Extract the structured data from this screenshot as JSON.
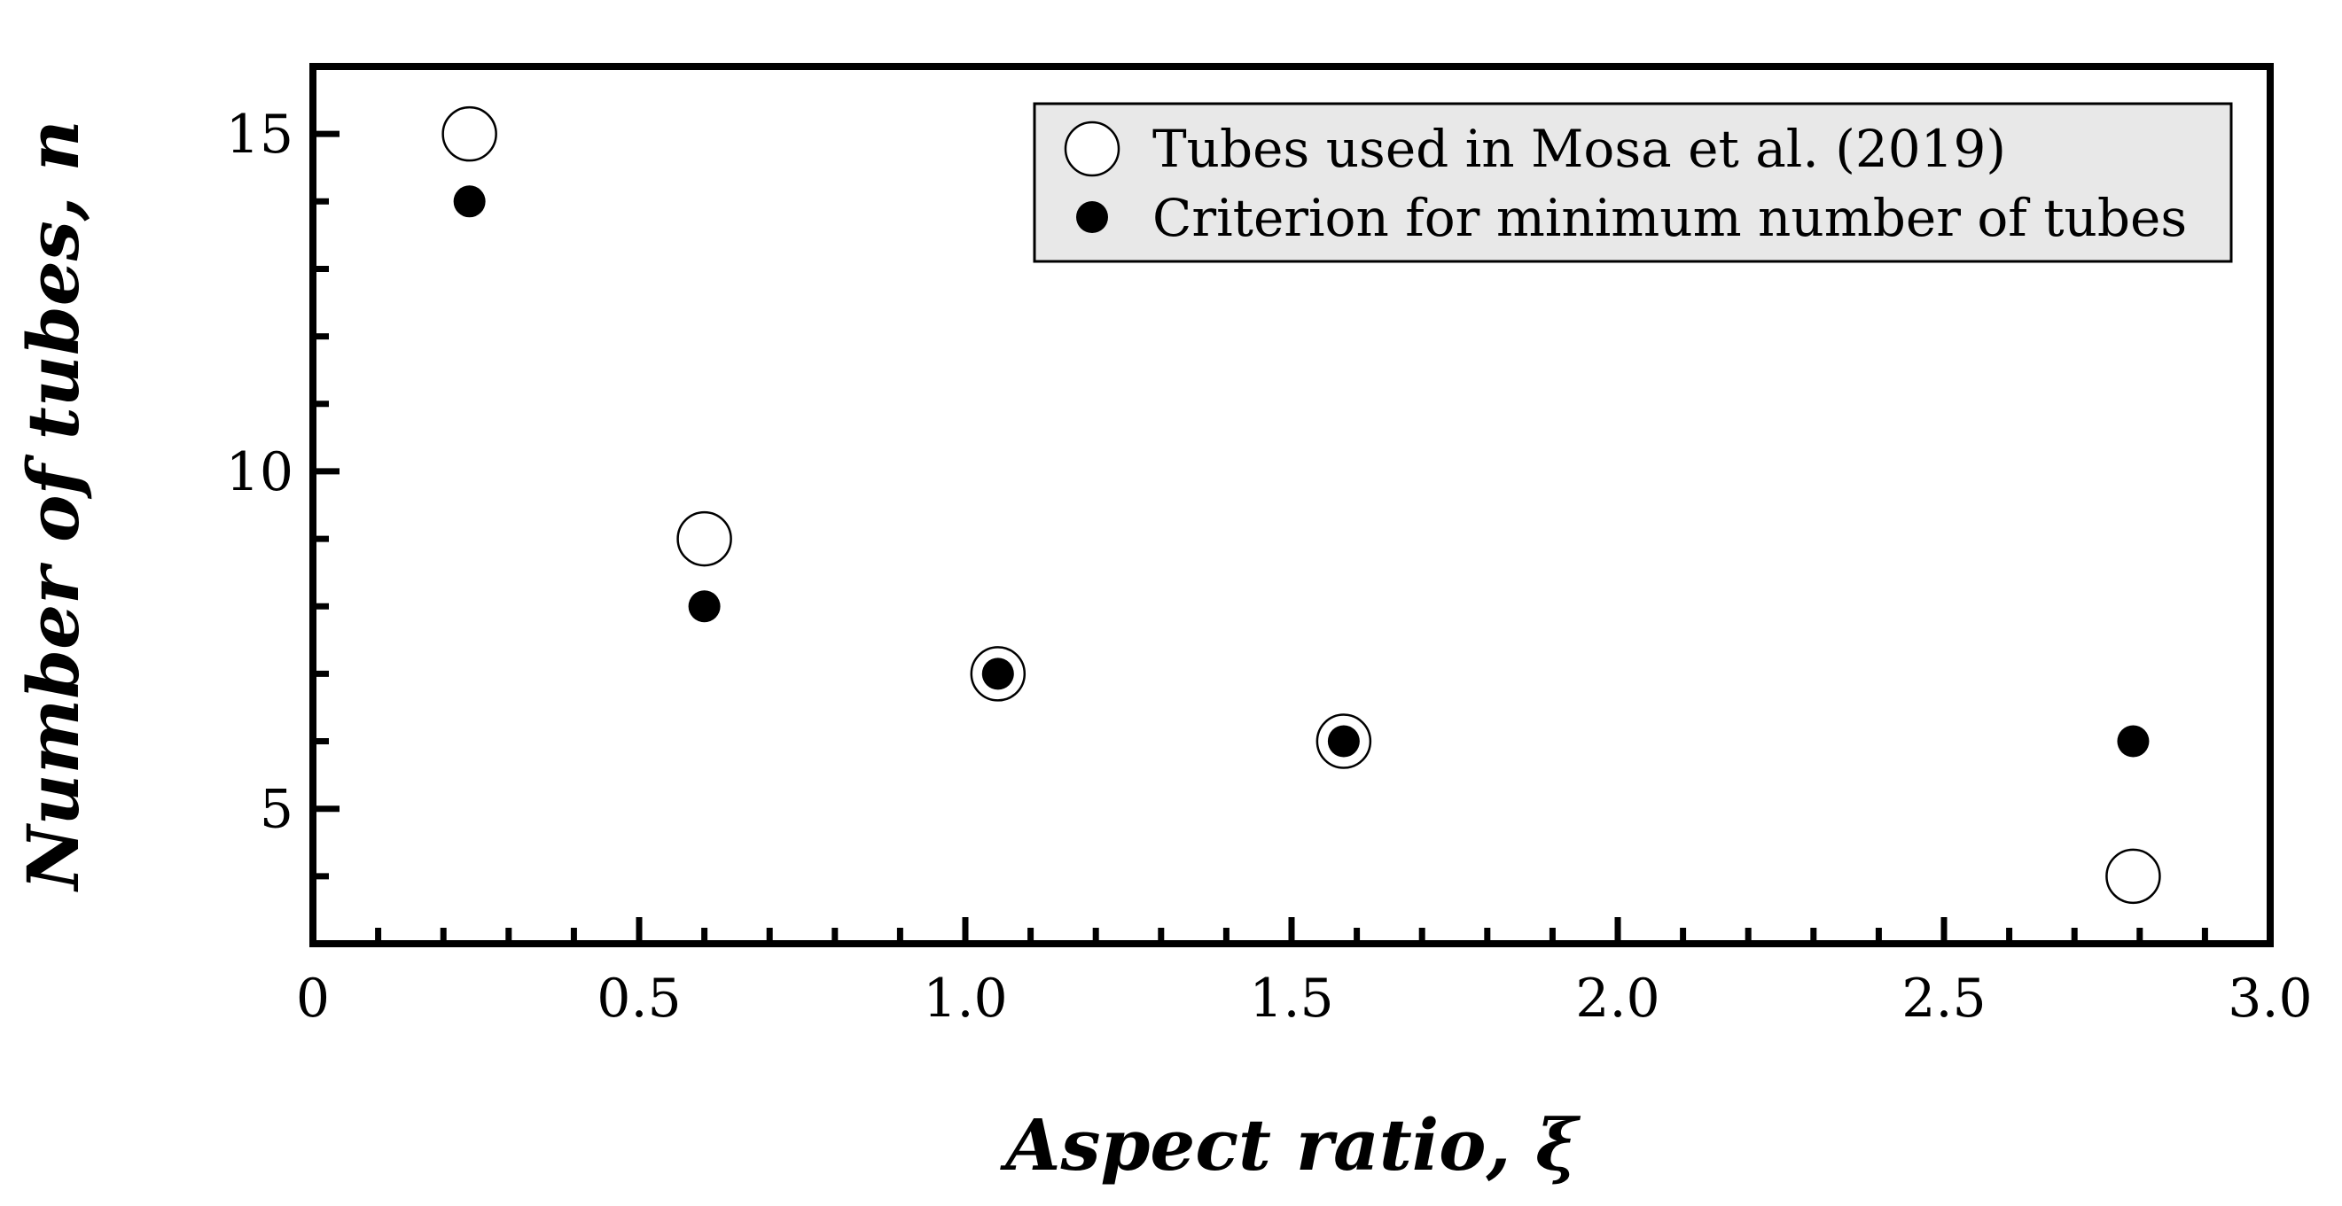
{
  "chart_data": {
    "type": "scatter",
    "xlabel": "Aspect ratio, ξ",
    "ylabel": "Number of tubes, n",
    "xlim": [
      0,
      3.0
    ],
    "ylim": [
      3,
      16
    ],
    "x_ticks": [
      0,
      0.5,
      1.0,
      1.5,
      2.0,
      2.5,
      3.0
    ],
    "x_tick_labels": [
      "0",
      "0.5",
      "1.0",
      "1.5",
      "2.0",
      "2.5",
      "3.0"
    ],
    "x_minor_step": 0.1,
    "y_ticks": [
      5,
      10,
      15
    ],
    "y_tick_labels": [
      "5",
      "10",
      "15"
    ],
    "y_minor_step": 1,
    "legend_position": "top-right",
    "series": [
      {
        "name": "Tubes used in Mosa et al. (2019)",
        "marker": "open-circle",
        "x": [
          0.24,
          0.6,
          1.05,
          1.58,
          2.79
        ],
        "y": [
          15,
          9,
          7,
          6,
          4
        ]
      },
      {
        "name": "Criterion for minimum number of tubes",
        "marker": "filled-circle",
        "x": [
          0.24,
          0.6,
          1.05,
          1.58,
          2.79
        ],
        "y": [
          14,
          8,
          7,
          6,
          6
        ]
      }
    ]
  }
}
